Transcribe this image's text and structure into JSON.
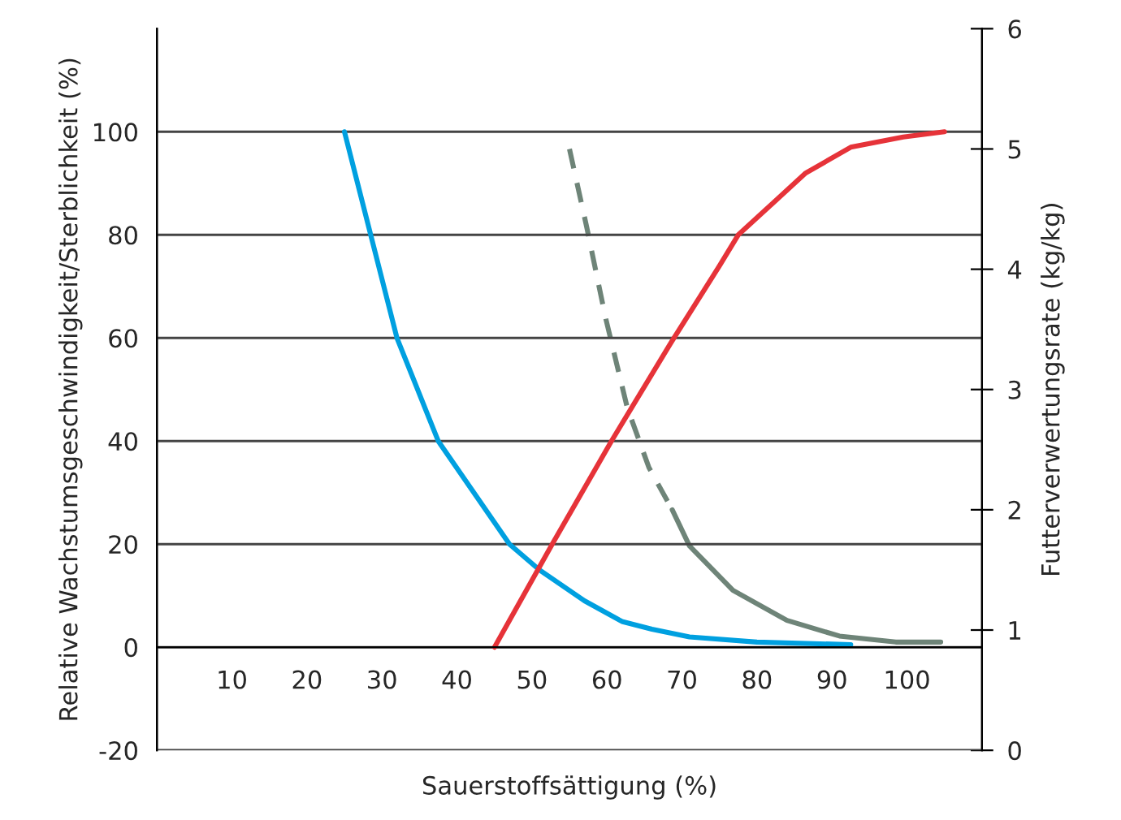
{
  "chart_data": {
    "type": "line",
    "xlabel": "Sauerstoffsättigung (%)",
    "ylabel": "Relative Wachstumsgeschwindigkeit/Sterblichkeit (%)",
    "y2label": "Futterverwertungsrate (kg/kg)",
    "xlim": [
      0,
      110
    ],
    "xticks": [
      10,
      20,
      30,
      40,
      50,
      60,
      70,
      80,
      90,
      100
    ],
    "ylim": [
      -20,
      120
    ],
    "yticks": [
      -20,
      0,
      20,
      40,
      60,
      80,
      100
    ],
    "y2lim": [
      0,
      6
    ],
    "y2ticks": [
      0,
      1,
      2,
      3,
      4,
      5,
      6
    ],
    "grid": "y",
    "legend": false,
    "marker": "none",
    "series": [
      {
        "color": "#00a0e0",
        "line_style": "solid",
        "x": [
          25,
          28.5,
          32,
          37.5,
          47,
          51,
          57,
          62,
          66,
          71,
          80,
          92.5
        ],
        "values": [
          100,
          80,
          60,
          40,
          20,
          15,
          9,
          5,
          3.5,
          2,
          1,
          0.5
        ]
      },
      {
        "color": "#e63339",
        "line_style": "solid",
        "x": [
          45,
          52.7,
          60.6,
          68.5,
          75,
          77.5,
          82,
          86.5,
          92.5,
          99.5,
          105
        ],
        "values": [
          0,
          20,
          40,
          59,
          74,
          80,
          86,
          92,
          97,
          99,
          100
        ]
      },
      {
        "color": "#6e8478",
        "line_style": "dashed",
        "axis": "y2",
        "x": [
          55,
          57.3,
          59.8,
          62.7,
          65.6,
          68.7
        ],
        "values": [
          5.0,
          4.35,
          3.6,
          2.85,
          2.35,
          2.0
        ]
      },
      {
        "color": "#6e8478",
        "line_style": "solid",
        "axis": "y2",
        "x": [
          68.7,
          71,
          76.8,
          84,
          91,
          98.5,
          104.5
        ],
        "values": [
          2.0,
          1.7,
          1.33,
          1.08,
          0.95,
          0.9,
          0.9
        ]
      }
    ]
  }
}
